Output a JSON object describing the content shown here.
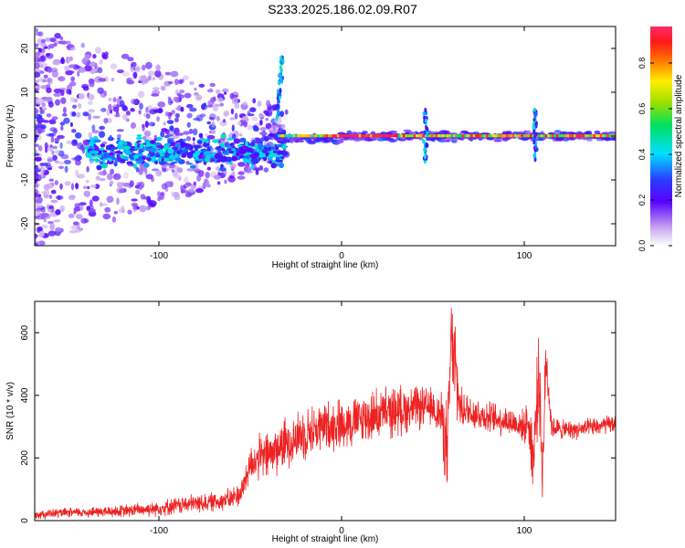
{
  "title": "S233.2025.186.02.09.R07",
  "colors": {
    "line": "#ee2222",
    "spectrogram_cmap": "rainbow-white-to-magenta"
  },
  "chart_data": [
    {
      "type": "heatmap",
      "xlabel": "Height of straight line (km)",
      "ylabel": "Frequency (Hz)",
      "xlim": [
        -168,
        150
      ],
      "ylim": [
        -25,
        25
      ],
      "xticks": [
        -100,
        0,
        100
      ],
      "yticks": [
        -20,
        -10,
        0,
        10,
        20
      ],
      "colorbar": {
        "label": "Normalized spectral amplitude",
        "range": [
          0,
          0.96
        ],
        "ticks": [
          "0.0",
          "0.2",
          "0.4",
          "0.6",
          "0.8"
        ]
      },
      "grid": false,
      "features": {
        "main_line_frequency_hz": 0,
        "scatter_region_km": [
          -168,
          -30
        ],
        "features_km": [
          -36,
          46,
          106
        ]
      }
    },
    {
      "type": "line",
      "xlabel": "Height of straight line (km)",
      "ylabel": "SNR (10 * v/v)",
      "xlim": [
        -168,
        150
      ],
      "ylim": [
        0,
        700
      ],
      "xticks": [
        -100,
        0,
        100
      ],
      "yticks": [
        0,
        200,
        400,
        600
      ],
      "grid": false,
      "series": [
        {
          "x": [
            -168,
            -150,
            -120,
            -100,
            -80,
            -70,
            -60,
            -55,
            -50,
            -45,
            -40,
            -30,
            -20,
            -10,
            0,
            10,
            20,
            30,
            40,
            50,
            55,
            58,
            60,
            62,
            65,
            70,
            80,
            90,
            100,
            102,
            105,
            108,
            110,
            112,
            115,
            120,
            130,
            140,
            150
          ],
          "y": [
            20,
            25,
            30,
            40,
            55,
            60,
            70,
            90,
            180,
            200,
            210,
            250,
            280,
            300,
            310,
            320,
            340,
            350,
            360,
            360,
            330,
            200,
            600,
            480,
            360,
            350,
            330,
            320,
            300,
            320,
            200,
            480,
            150,
            520,
            300,
            290,
            290,
            300,
            310
          ],
          "spread": [
            15,
            15,
            20,
            25,
            30,
            30,
            35,
            40,
            60,
            70,
            80,
            80,
            80,
            80,
            80,
            80,
            80,
            80,
            70,
            60,
            80,
            180,
            100,
            200,
            60,
            60,
            50,
            50,
            50,
            60,
            150,
            120,
            120,
            100,
            40,
            30,
            30,
            30,
            30
          ]
        }
      ]
    }
  ]
}
